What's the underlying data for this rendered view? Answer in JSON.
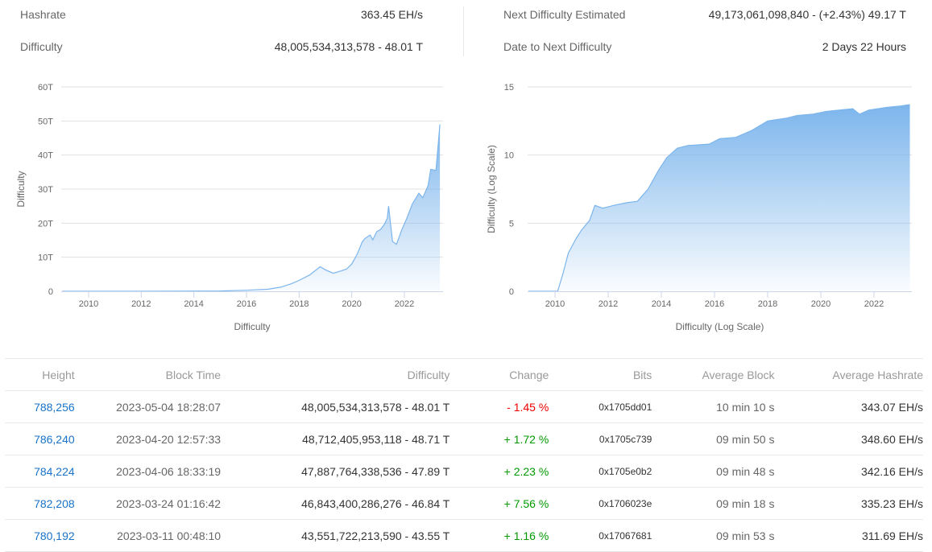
{
  "stats": {
    "hashrate_label": "Hashrate",
    "hashrate_value": "363.45 EH/s",
    "difficulty_label": "Difficulty",
    "difficulty_value": "48,005,534,313,578 - 48.01 T",
    "next_label": "Next Difficulty Estimated",
    "next_value": "49,173,061,098,840 - (+2.43%) 49.17 T",
    "date_label": "Date to Next Difficulty",
    "date_value": "2 Days 22 Hours"
  },
  "colors": {
    "series": "#7cb5ec",
    "link": "#1a73c8",
    "negative": "#e00000",
    "positive": "#009900"
  },
  "chart_data": [
    {
      "type": "area",
      "xlabel": "Difficulty",
      "ylabel": "Difficulty",
      "xlim": [
        2009,
        2023.4
      ],
      "ylim": [
        0,
        60
      ],
      "x_ticks": [
        "2010",
        "2012",
        "2014",
        "2016",
        "2018",
        "2020",
        "2022"
      ],
      "y_ticks": [
        "0",
        "10T",
        "20T",
        "30T",
        "40T",
        "50T",
        "60T"
      ],
      "grid": true,
      "series": [
        {
          "x": [
            2009,
            2012,
            2015,
            2016,
            2016.8,
            2017.3,
            2017.7,
            2018,
            2018.4,
            2018.8,
            2019,
            2019.3,
            2019.6,
            2019.8,
            2020,
            2020.2,
            2020.4,
            2020.5,
            2020.7,
            2020.8,
            2020.95,
            2021.1,
            2021.25,
            2021.35,
            2021.4,
            2021.55,
            2021.7,
            2021.9,
            2022.1,
            2022.3,
            2022.55,
            2022.7,
            2022.9,
            2023,
            2023.2,
            2023.3,
            2023.35
          ],
          "y": [
            0,
            0.01,
            0.1,
            0.3,
            0.6,
            1.2,
            2.2,
            3.2,
            4.8,
            7.2,
            6.3,
            5.3,
            6.0,
            6.5,
            8,
            10.8,
            14.5,
            15.5,
            16.5,
            15.1,
            17.5,
            18.2,
            19.8,
            21.5,
            25,
            14.6,
            13.8,
            18,
            21.6,
            25.6,
            28.8,
            27.5,
            31,
            35.8,
            35.5,
            44.5,
            49
          ]
        }
      ]
    },
    {
      "type": "area",
      "xlabel": "Difficulty (Log Scale)",
      "ylabel": "Difficulty (Log Scale)",
      "xlim": [
        2009,
        2023.4
      ],
      "ylim": [
        0,
        15
      ],
      "x_ticks": [
        "2010",
        "2012",
        "2014",
        "2016",
        "2018",
        "2020",
        "2022"
      ],
      "y_ticks": [
        "0",
        "5",
        "10",
        "15"
      ],
      "grid": true,
      "series": [
        {
          "x": [
            2009,
            2010.1,
            2010.3,
            2010.5,
            2010.8,
            2011,
            2011.3,
            2011.5,
            2011.8,
            2012.2,
            2012.7,
            2013.1,
            2013.5,
            2013.9,
            2014.2,
            2014.6,
            2015,
            2015.8,
            2016.2,
            2016.8,
            2017.4,
            2018,
            2018.7,
            2019.1,
            2019.7,
            2020.2,
            2021.2,
            2021.45,
            2021.8,
            2022.5,
            2023,
            2023.35
          ],
          "y": [
            0,
            0,
            1.3,
            2.8,
            3.9,
            4.5,
            5.2,
            6.3,
            6.1,
            6.3,
            6.5,
            6.6,
            7.5,
            8.9,
            9.8,
            10.5,
            10.7,
            10.8,
            11.2,
            11.3,
            11.8,
            12.5,
            12.7,
            12.9,
            13.0,
            13.2,
            13.4,
            13.0,
            13.3,
            13.5,
            13.6,
            13.7
          ]
        }
      ]
    }
  ],
  "table": {
    "headers": [
      "Height",
      "Block Time",
      "Difficulty",
      "Change",
      "Bits",
      "Average Block",
      "Average Hashrate"
    ],
    "rows": [
      {
        "height": "788,256",
        "time": "2023-05-04 18:28:07",
        "difficulty": "48,005,534,313,578 - 48.01 T",
        "change": "- 1.45 %",
        "bits": "0x1705dd01",
        "avg_block": "10 min 10 s",
        "avg_hashrate": "343.07 EH/s"
      },
      {
        "height": "786,240",
        "time": "2023-04-20 12:57:33",
        "difficulty": "48,712,405,953,118 - 48.71 T",
        "change": "+ 1.72 %",
        "bits": "0x1705c739",
        "avg_block": "09 min 50 s",
        "avg_hashrate": "348.60 EH/s"
      },
      {
        "height": "784,224",
        "time": "2023-04-06 18:33:19",
        "difficulty": "47,887,764,338,536 - 47.89 T",
        "change": "+ 2.23 %",
        "bits": "0x1705e0b2",
        "avg_block": "09 min 48 s",
        "avg_hashrate": "342.16 EH/s"
      },
      {
        "height": "782,208",
        "time": "2023-03-24 01:16:42",
        "difficulty": "46,843,400,286,276 - 46.84 T",
        "change": "+ 7.56 %",
        "bits": "0x1706023e",
        "avg_block": "09 min 18 s",
        "avg_hashrate": "335.23 EH/s"
      },
      {
        "height": "780,192",
        "time": "2023-03-11 00:48:10",
        "difficulty": "43,551,722,213,590 - 43.55 T",
        "change": "+ 1.16 %",
        "bits": "0x17067681",
        "avg_block": "09 min 53 s",
        "avg_hashrate": "311.69 EH/s"
      }
    ]
  }
}
